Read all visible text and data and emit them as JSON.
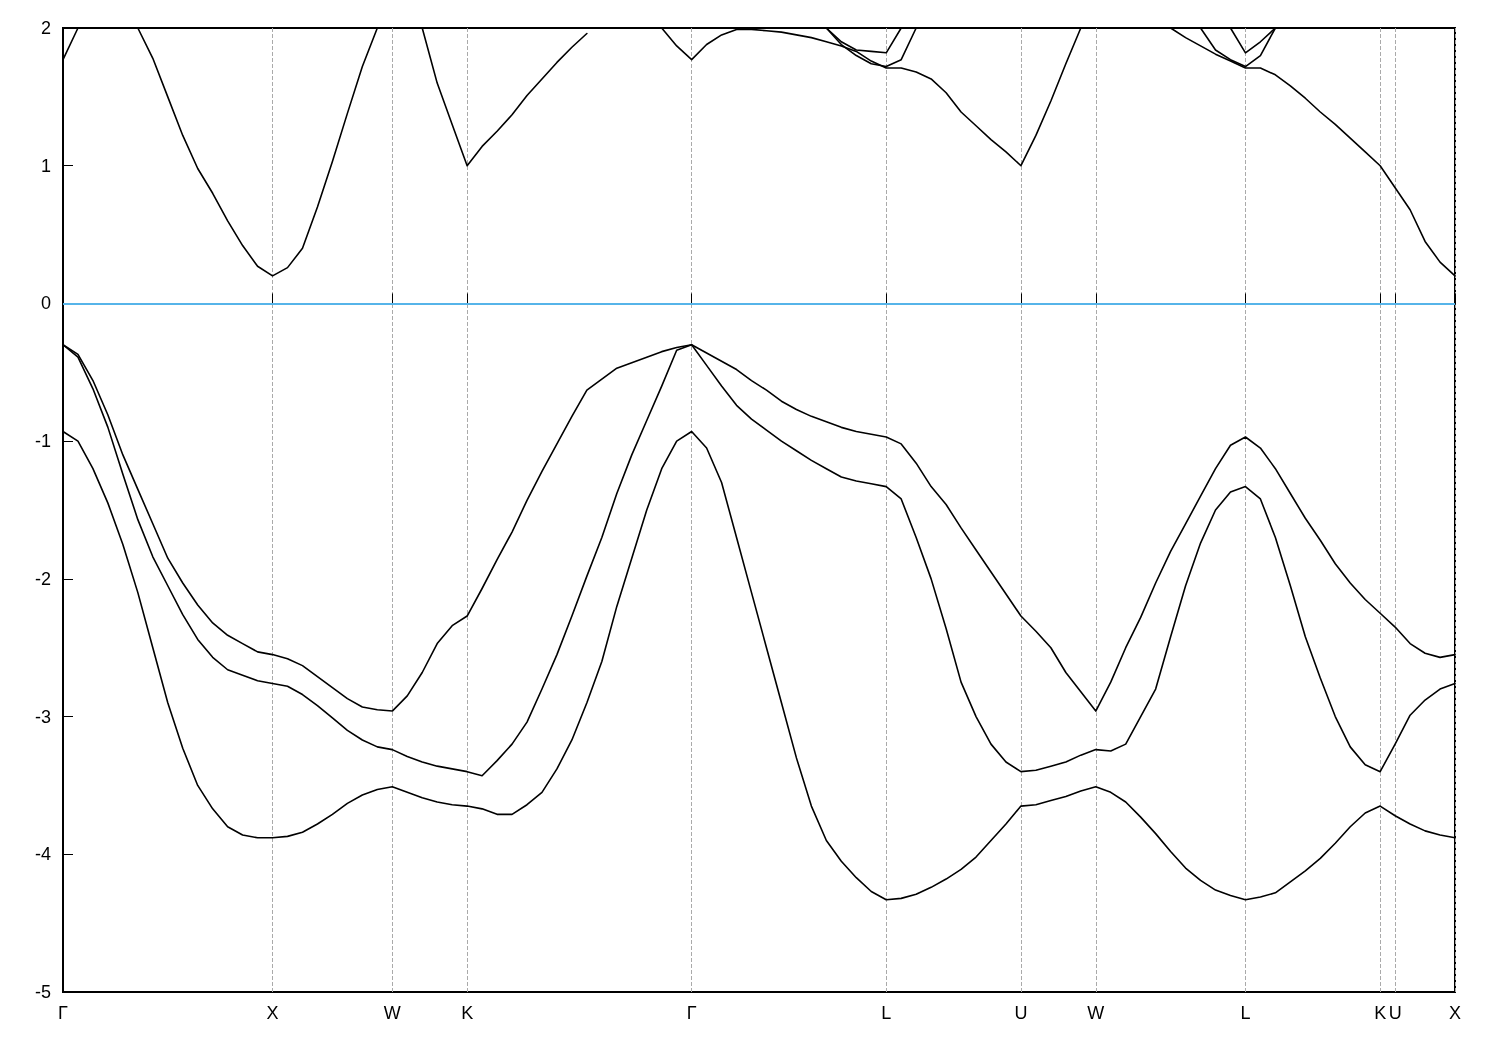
{
  "chart_data": {
    "type": "line",
    "ylim": [
      -5,
      2
    ],
    "categories": [
      "Γ",
      null,
      null,
      null,
      null,
      null,
      null,
      null,
      null,
      null,
      null,
      null,
      null,
      null,
      "X",
      null,
      null,
      null,
      null,
      null,
      null,
      null,
      "W",
      null,
      null,
      null,
      null,
      "K",
      null,
      null,
      null,
      null,
      null,
      null,
      null,
      null,
      null,
      null,
      null,
      null,
      null,
      null,
      "Γ",
      null,
      null,
      null,
      null,
      null,
      null,
      null,
      null,
      null,
      null,
      null,
      null,
      "L",
      null,
      null,
      null,
      null,
      null,
      null,
      null,
      null,
      "U",
      null,
      null,
      null,
      null,
      "W",
      null,
      null,
      null,
      null,
      null,
      null,
      null,
      null,
      null,
      "L",
      null,
      null,
      null,
      null,
      null,
      null,
      null,
      null,
      "K",
      "U",
      null,
      null,
      null,
      "X"
    ],
    "yticks": [
      -5,
      -4,
      -3,
      -2,
      -1,
      0,
      1,
      2
    ],
    "grid": "x",
    "marker": "none",
    "line_style": "solid",
    "ref_lines": [
      {
        "axis": "y",
        "value": 0,
        "color": "#56b4e9"
      }
    ],
    "series": [
      {
        "color": "#000000",
        "values": [
          -0.3,
          -0.37,
          -0.56,
          -0.81,
          -1.1,
          -1.35,
          -1.6,
          -1.85,
          -2.03,
          -2.19,
          -2.32,
          -2.41,
          -2.47,
          -2.53,
          -2.55,
          -2.58,
          -2.63,
          -2.71,
          -2.79,
          -2.87,
          -2.93,
          -2.95,
          -2.96,
          -2.85,
          -2.68,
          -2.47,
          -2.34,
          -2.27,
          -2.07,
          -1.86,
          -1.66,
          -1.43,
          -1.22,
          -1.02,
          -0.82,
          -0.63,
          -0.55,
          -0.47,
          -0.43,
          -0.39,
          -0.35,
          -0.32,
          -0.3,
          -0.36,
          -0.42,
          -0.48,
          -0.56,
          -0.63,
          -0.71,
          -0.77,
          -0.82,
          -0.86,
          -0.9,
          -0.93,
          -0.95,
          -0.97,
          -1.02,
          -1.16,
          -1.33,
          -1.46,
          -1.63,
          -1.79,
          -1.95,
          -2.11,
          -2.27,
          -2.38,
          -2.5,
          -2.68,
          -2.82,
          -2.96,
          -2.75,
          -2.5,
          -2.28,
          -2.03,
          -1.8,
          -1.6,
          -1.4,
          -1.2,
          -1.03,
          -0.97,
          -1.05,
          -1.2,
          -1.38,
          -1.56,
          -1.72,
          -1.89,
          -2.03,
          -2.15,
          -2.25,
          -2.35,
          -2.47,
          -2.54,
          -2.57,
          -2.55
        ]
      },
      {
        "color": "#000000",
        "values": [
          -0.3,
          -0.39,
          -0.62,
          -0.9,
          -1.24,
          -1.57,
          -1.84,
          -2.05,
          -2.26,
          -2.44,
          -2.57,
          -2.66,
          -2.7,
          -2.74,
          -2.76,
          -2.78,
          -2.84,
          -2.92,
          -3.01,
          -3.1,
          -3.17,
          -3.22,
          -3.24,
          -3.29,
          -3.33,
          -3.36,
          -3.38,
          -3.4,
          -3.43,
          -3.32,
          -3.2,
          -3.04,
          -2.8,
          -2.55,
          -2.27,
          -1.98,
          -1.7,
          -1.38,
          -1.1,
          -0.85,
          -0.6,
          -0.34,
          -0.3,
          -0.45,
          -0.6,
          -0.74,
          -0.84,
          -0.92,
          -1.0,
          -1.07,
          -1.14,
          -1.2,
          -1.26,
          -1.29,
          -1.31,
          -1.33,
          -1.42,
          -1.7,
          -2.0,
          -2.36,
          -2.75,
          -3.0,
          -3.2,
          -3.33,
          -3.4,
          -3.39,
          -3.36,
          -3.33,
          -3.28,
          -3.24,
          -3.25,
          -3.2,
          -3.0,
          -2.8,
          -2.42,
          -2.05,
          -1.74,
          -1.5,
          -1.37,
          -1.33,
          -1.42,
          -1.7,
          -2.05,
          -2.42,
          -2.72,
          -3.0,
          -3.22,
          -3.35,
          -3.4,
          -3.2,
          -2.99,
          -2.88,
          -2.8,
          -2.76
        ]
      },
      {
        "color": "#000000",
        "values": [
          -0.93,
          -1.0,
          -1.2,
          -1.45,
          -1.75,
          -2.1,
          -2.5,
          -2.9,
          -3.23,
          -3.5,
          -3.67,
          -3.8,
          -3.86,
          -3.88,
          -3.88,
          -3.87,
          -3.84,
          -3.78,
          -3.71,
          -3.63,
          -3.57,
          -3.53,
          -3.51,
          -3.55,
          -3.59,
          -3.62,
          -3.64,
          -3.65,
          -3.67,
          -3.71,
          -3.71,
          -3.64,
          -3.55,
          -3.38,
          -3.17,
          -2.9,
          -2.6,
          -2.2,
          -1.85,
          -1.5,
          -1.2,
          -1.0,
          -0.93,
          -1.05,
          -1.3,
          -1.7,
          -2.1,
          -2.5,
          -2.9,
          -3.3,
          -3.65,
          -3.9,
          -4.05,
          -4.17,
          -4.27,
          -4.33,
          -4.32,
          -4.29,
          -4.24,
          -4.18,
          -4.11,
          -4.02,
          -3.9,
          -3.78,
          -3.65,
          -3.64,
          -3.61,
          -3.58,
          -3.54,
          -3.51,
          -3.55,
          -3.62,
          -3.73,
          -3.85,
          -3.98,
          -4.1,
          -4.19,
          -4.26,
          -4.3,
          -4.33,
          -4.31,
          -4.28,
          -4.2,
          -4.12,
          -4.03,
          -3.92,
          -3.8,
          -3.7,
          -3.65,
          -3.72,
          -3.78,
          -3.83,
          -3.86,
          -3.88
        ]
      },
      {
        "color": "#000000",
        "values": [
          1.77,
          2.0,
          null,
          null,
          null,
          2.0,
          1.78,
          1.5,
          1.22,
          0.98,
          0.8,
          0.6,
          0.42,
          0.27,
          0.2,
          0.26,
          0.4,
          0.7,
          1.03,
          1.38,
          1.72,
          2.0,
          null,
          null,
          2.0,
          1.6,
          1.3,
          1.0,
          1.14,
          1.25,
          1.37,
          1.51,
          1.63,
          1.75,
          1.86,
          1.96,
          null,
          null,
          null,
          null,
          2.0,
          1.87,
          1.77,
          1.88,
          1.95,
          1.99,
          1.99,
          1.98,
          1.97,
          1.95,
          1.93,
          1.9,
          1.87,
          1.83,
          1.76,
          1.71,
          1.71,
          1.68,
          1.63,
          1.53,
          1.39,
          1.29,
          1.19,
          1.1,
          1.0,
          1.22,
          1.47,
          1.74,
          2.0,
          null,
          null,
          null,
          null,
          null,
          2.0,
          1.93,
          1.87,
          1.81,
          1.76,
          1.71,
          1.71,
          1.66,
          1.58,
          1.49,
          1.39,
          1.3,
          1.2,
          1.1,
          1.0,
          0.84,
          0.68,
          0.45,
          0.3,
          0.2
        ]
      },
      {
        "color": "#000000",
        "values": [
          null,
          null,
          null,
          null,
          null,
          null,
          null,
          null,
          null,
          null,
          null,
          null,
          null,
          null,
          null,
          null,
          null,
          null,
          null,
          null,
          null,
          null,
          null,
          null,
          null,
          null,
          null,
          null,
          null,
          null,
          null,
          null,
          null,
          null,
          null,
          null,
          null,
          null,
          null,
          null,
          null,
          null,
          null,
          null,
          null,
          null,
          null,
          null,
          null,
          null,
          null,
          2.0,
          1.9,
          1.84,
          1.83,
          1.82,
          2.0,
          null,
          null,
          null,
          null,
          null,
          null,
          null,
          null,
          null,
          null,
          null,
          null,
          null,
          null,
          null,
          null,
          null,
          null,
          null,
          null,
          null,
          2.0,
          1.82,
          1.9,
          2.0,
          null,
          null,
          null,
          null,
          null,
          null,
          null,
          null,
          null,
          null,
          null,
          null
        ]
      },
      {
        "color": "#000000",
        "values": [
          null,
          null,
          null,
          null,
          null,
          null,
          null,
          null,
          null,
          null,
          null,
          null,
          null,
          null,
          null,
          null,
          null,
          null,
          null,
          null,
          null,
          null,
          null,
          null,
          null,
          null,
          null,
          null,
          null,
          null,
          null,
          null,
          null,
          null,
          null,
          null,
          null,
          null,
          null,
          null,
          null,
          null,
          null,
          null,
          null,
          null,
          null,
          null,
          null,
          null,
          null,
          2.0,
          1.88,
          1.8,
          1.74,
          1.72,
          1.77,
          2.0,
          null,
          null,
          null,
          null,
          null,
          null,
          null,
          null,
          null,
          null,
          null,
          null,
          null,
          null,
          null,
          null,
          null,
          null,
          2.0,
          1.84,
          1.77,
          1.72,
          1.8,
          2.0,
          null,
          null,
          null,
          null,
          null,
          null,
          null,
          null,
          null,
          null,
          null,
          null
        ]
      }
    ]
  }
}
